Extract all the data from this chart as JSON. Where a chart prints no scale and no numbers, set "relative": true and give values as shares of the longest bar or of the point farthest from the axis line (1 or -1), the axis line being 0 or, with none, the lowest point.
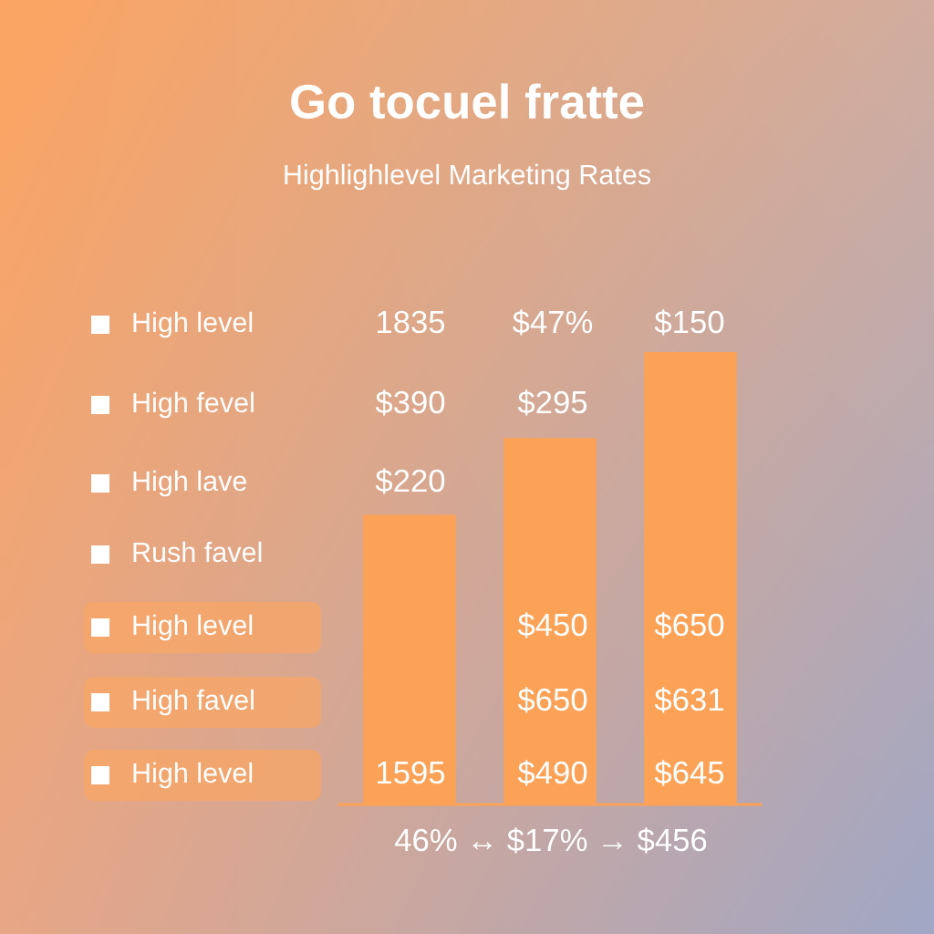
{
  "chart_data": {
    "type": "bar",
    "title": "Go tocuel fratte",
    "subtitle": "Highlighlevel Marketing Rates",
    "categories": [
      null,
      null,
      null
    ],
    "values": [
      0.64,
      0.81,
      1
    ],
    "relative": true,
    "color": "#fba257",
    "annotations": [
      "High level",
      "High fevel",
      "High lave",
      "Rush favel",
      "High level",
      "High favel",
      "High level",
      "1835",
      "$47%",
      "$150",
      "$390",
      "$295",
      "$220",
      "$450",
      "$650",
      "$650",
      "$631",
      "1595",
      "$490",
      "$645",
      "46% ↔ $17% → $456"
    ]
  }
}
